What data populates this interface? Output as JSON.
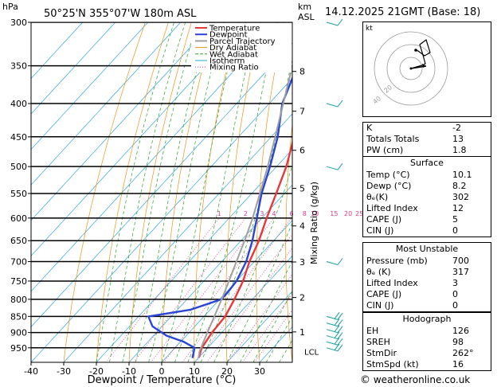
{
  "header": {
    "location": "50°25'N  355°07'W  180m  ASL",
    "datetime": "14.12.2025  21GMT  (Base: 18)",
    "hpa_unit": "hPa",
    "km_unit": "km",
    "asl_unit": "ASL"
  },
  "chart_data": {
    "type": "line",
    "title": "Skew-T log-P diagram",
    "xlabel": "Dewpoint / Temperature (°C)",
    "ylabel": "hPa",
    "right_ylabel": "Mixing Ratio (g/kg)",
    "xlim": [
      -40,
      40
    ],
    "ylim": [
      1000,
      300
    ],
    "x_ticks": [
      -40,
      -30,
      -20,
      -10,
      0,
      10,
      20,
      30
    ],
    "pressure_levels": [
      300,
      350,
      400,
      450,
      500,
      550,
      600,
      650,
      700,
      750,
      800,
      850,
      900,
      950
    ],
    "km_ticks": [
      {
        "km": "8",
        "p": 357
      },
      {
        "km": "7",
        "p": 411
      },
      {
        "km": "6",
        "p": 472
      },
      {
        "km": "5",
        "p": 540
      },
      {
        "km": "4",
        "p": 617
      },
      {
        "km": "3",
        "p": 701
      },
      {
        "km": "2",
        "p": 795
      },
      {
        "km": "1",
        "p": 898
      }
    ],
    "lcl": {
      "label": "LCL",
      "p": 962
    },
    "mixing_ratios": [
      1,
      2,
      3,
      4,
      6,
      8,
      10,
      15,
      20,
      25
    ],
    "mixing_ratio_labels": [
      "1",
      "2",
      "3",
      "4",
      "6",
      "8",
      "10",
      "15",
      "20",
      "25"
    ],
    "legend": [
      "Temperature",
      "Dewpoint",
      "Parcel Trajectory",
      "Dry Adiabat",
      "Wet Adiabat",
      "Isotherm",
      "Mixing Ratio"
    ],
    "legend_placement": "top-left",
    "series": [
      {
        "name": "Temperature",
        "color": "#e8383a",
        "p": [
          985,
          950,
          900,
          850,
          800,
          750,
          700,
          650,
          600,
          550,
          500,
          450,
          400,
          350,
          300
        ],
        "t": [
          10.1,
          8.2,
          7.0,
          6.5,
          4.5,
          2.0,
          -1.5,
          -4.5,
          -8.5,
          -12.5,
          -17.0,
          -23.0,
          -29.0,
          -36.5,
          -44.0
        ]
      },
      {
        "name": "Dewpoint",
        "color": "#2a45d8",
        "p": [
          985,
          950,
          930,
          910,
          880,
          850,
          830,
          800,
          780,
          750,
          700,
          650,
          600,
          550,
          500,
          450,
          400,
          350,
          300
        ],
        "t": [
          8.2,
          6.0,
          1.0,
          -6.0,
          -13.0,
          -17.0,
          -6.0,
          0.5,
          0.5,
          0.0,
          -2.5,
          -6.5,
          -11.5,
          -17.0,
          -22.0,
          -28.0,
          -36.0,
          -42.0,
          -52.0
        ]
      },
      {
        "name": "Parcel Trajectory",
        "color": "#a0a0a0",
        "p": [
          985,
          962,
          900,
          850,
          800,
          750,
          700,
          650,
          600,
          550,
          500,
          450,
          400,
          350,
          300
        ],
        "t": [
          10.1,
          8.5,
          5.6,
          3.2,
          0.6,
          -2.3,
          -5.5,
          -8.9,
          -12.8,
          -17.5,
          -22.7,
          -28.8,
          -35.7,
          -43.5,
          -52.5
        ]
      }
    ],
    "wind_barbs": [
      300,
      400,
      500,
      700,
      850,
      870,
      890,
      910,
      930,
      950
    ]
  },
  "indices": {
    "rows": [
      {
        "k": "K",
        "v": "-2"
      },
      {
        "k": "Totals Totals",
        "v": "13"
      },
      {
        "k": "PW (cm)",
        "v": "1.8"
      }
    ]
  },
  "surface": {
    "title": "Surface",
    "rows": [
      {
        "k": "Temp (°C)",
        "v": "10.1"
      },
      {
        "k": "Dewp (°C)",
        "v": "8.2"
      },
      {
        "k": "θₑ(K)",
        "v": "302"
      },
      {
        "k": "Lifted Index",
        "v": "12"
      },
      {
        "k": "CAPE (J)",
        "v": "5"
      },
      {
        "k": "CIN (J)",
        "v": "0"
      }
    ]
  },
  "most_unstable": {
    "title": "Most Unstable",
    "rows": [
      {
        "k": "Pressure (mb)",
        "v": "700"
      },
      {
        "k": "θₑ (K)",
        "v": "317"
      },
      {
        "k": "Lifted Index",
        "v": "3"
      },
      {
        "k": "CAPE (J)",
        "v": "0"
      },
      {
        "k": "CIN (J)",
        "v": "0"
      }
    ]
  },
  "hodograph": {
    "title": "Hodograph",
    "kt_label": "kt",
    "ring_labels": [
      "20",
      "40"
    ],
    "rows": [
      {
        "k": "EH",
        "v": "126"
      },
      {
        "k": "SREH",
        "v": "98"
      },
      {
        "k": "StmDir",
        "v": "262°"
      },
      {
        "k": "StmSpd (kt)",
        "v": "16"
      }
    ]
  },
  "footer": {
    "copyright": "©",
    "site": "weatheronline.co.uk"
  },
  "colors": {
    "temperature": "#e8383a",
    "dewpoint": "#2a45d8",
    "parcel": "#a0a0a0",
    "dry_adiabat": "#e8941a",
    "wet_adiabat": "#2aa02a",
    "isotherm": "#2ba4e0",
    "mixing_ratio": "#d23c96",
    "wind": "#16a0a0"
  }
}
